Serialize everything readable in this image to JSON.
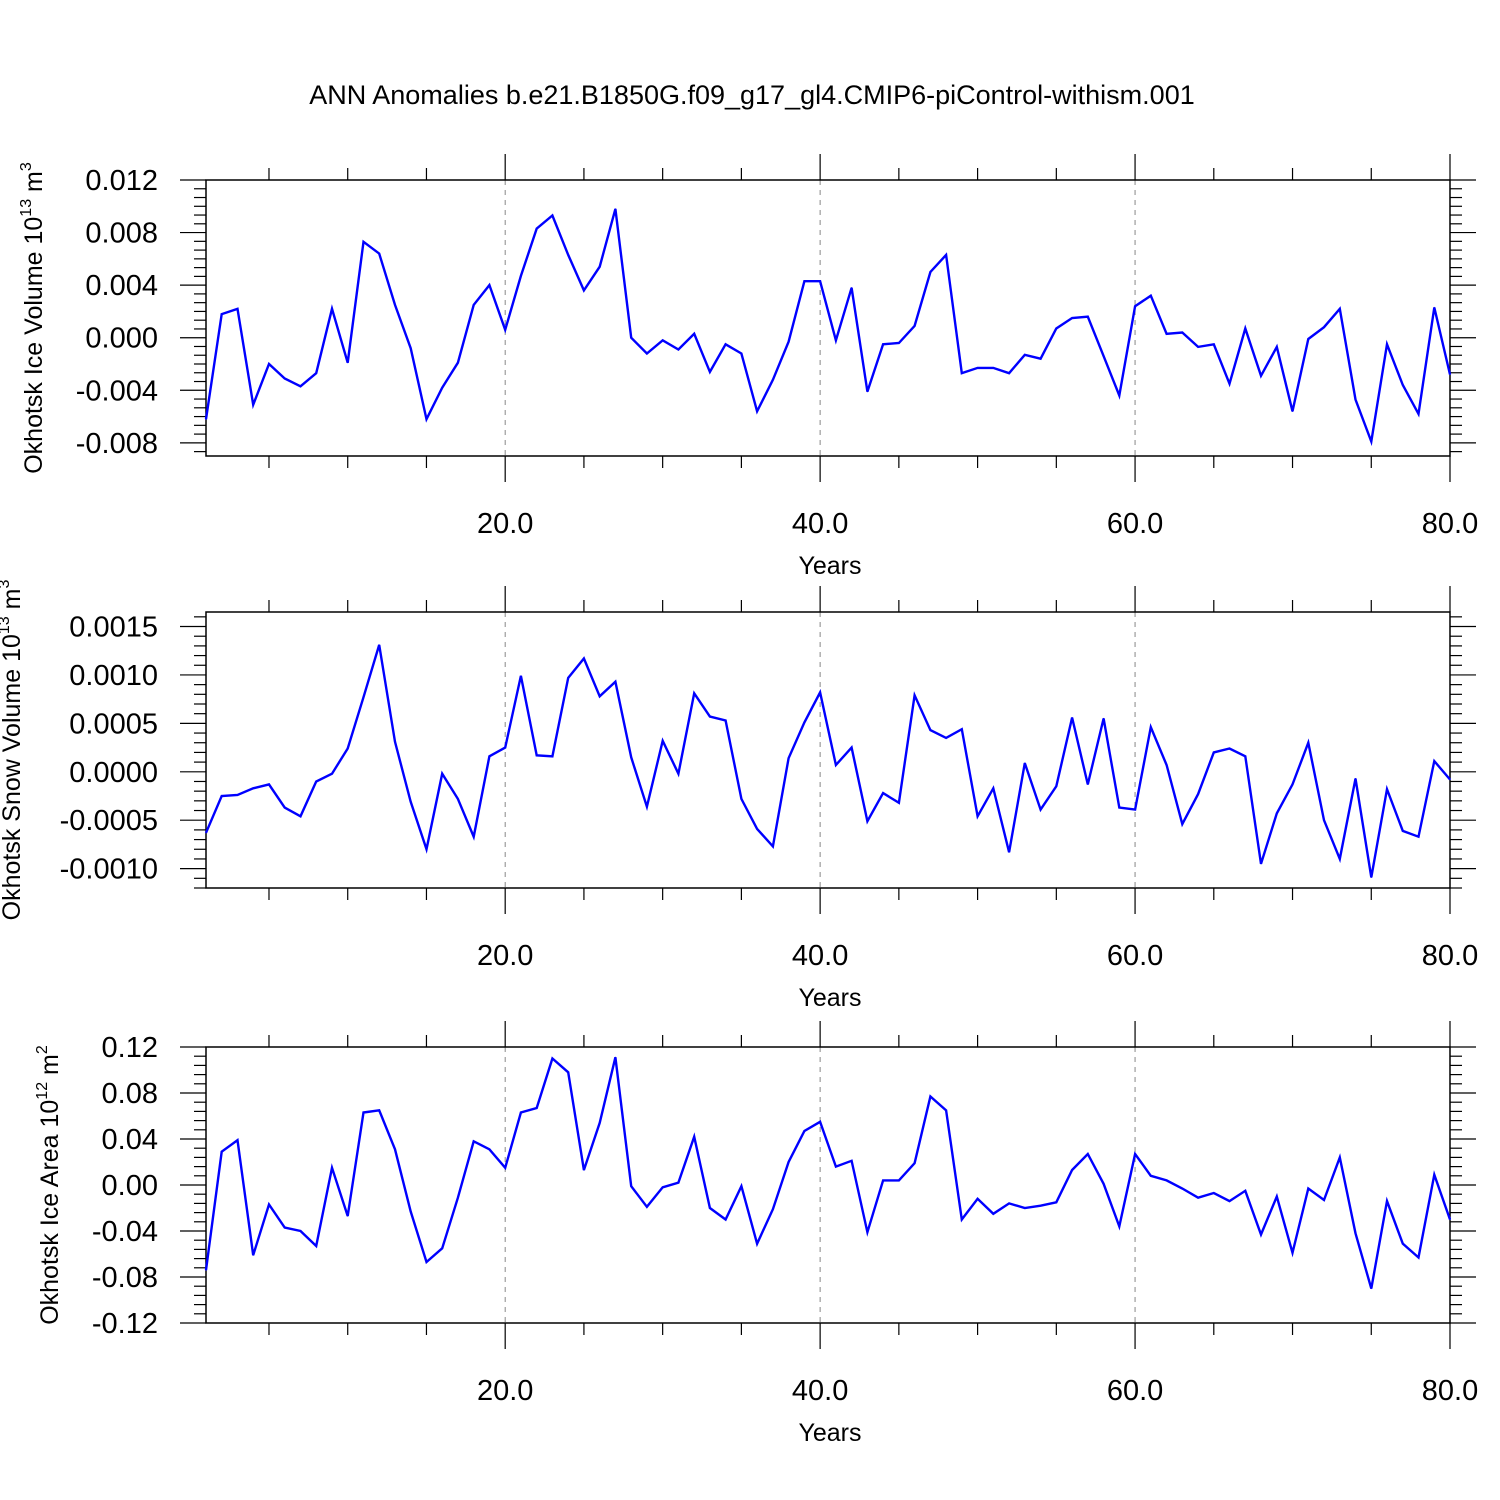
{
  "title": "ANN Anomalies b.e21.B1850G.f09_g17_gl4.CMIP6-piControl-withism.001",
  "line_color": "#0000ff",
  "chart_data": [
    {
      "type": "line",
      "name": "ice-volume",
      "ylabel": "Okhotsk Ice Volume 10",
      "ylabel_sup": "13",
      "ylabel_unit": " m",
      "ylabel_unit_sup": "3",
      "xlabel": "Years",
      "xlim": [
        1,
        80
      ],
      "ylim": [
        -0.009,
        0.012
      ],
      "yticks": [
        0.012,
        0.008,
        0.004,
        0.0,
        -0.004,
        -0.008
      ],
      "ytick_labels": [
        "0.012",
        "0.008",
        "0.004",
        "0.000",
        "-0.004",
        "-0.008"
      ],
      "xticks": [
        20,
        40,
        60,
        80
      ],
      "xtick_labels": [
        "20.0",
        "40.0",
        "60.0",
        "80.0"
      ],
      "x": [
        1,
        2,
        3,
        4,
        5,
        6,
        7,
        8,
        9,
        10,
        11,
        12,
        13,
        14,
        15,
        16,
        17,
        18,
        19,
        20,
        21,
        22,
        23,
        24,
        25,
        26,
        27,
        28,
        29,
        30,
        31,
        32,
        33,
        34,
        35,
        36,
        37,
        38,
        39,
        40,
        41,
        42,
        43,
        44,
        45,
        46,
        47,
        48,
        49,
        50,
        51,
        52,
        53,
        54,
        55,
        56,
        57,
        58,
        59,
        60,
        61,
        62,
        63,
        64,
        65,
        66,
        67,
        68,
        69,
        70,
        71,
        72,
        73,
        74,
        75,
        76,
        77,
        78,
        79,
        80
      ],
      "y": [
        -0.0062,
        0.0018,
        0.0022,
        -0.0051,
        -0.002,
        -0.0031,
        -0.0037,
        -0.0027,
        0.0022,
        -0.0019,
        0.0073,
        0.0064,
        0.0025,
        -0.0008,
        -0.0062,
        -0.0038,
        -0.0019,
        0.0025,
        0.004,
        0.0006,
        0.0047,
        0.0083,
        0.0093,
        0.0063,
        0.0036,
        0.0054,
        0.0098,
        0.0,
        -0.0012,
        -0.0002,
        -0.0009,
        0.0003,
        -0.0026,
        -0.0005,
        -0.0012,
        -0.0056,
        -0.0032,
        -0.0003,
        0.0043,
        0.0043,
        -0.0002,
        0.0038,
        -0.0041,
        -0.0005,
        -0.0004,
        0.0009,
        0.005,
        0.0063,
        -0.0027,
        -0.0023,
        -0.0023,
        -0.0027,
        -0.0013,
        -0.0016,
        0.0007,
        0.0015,
        0.0016,
        -0.0014,
        -0.0044,
        0.0024,
        0.0032,
        0.0003,
        0.0004,
        -0.0007,
        -0.0005,
        -0.0035,
        0.0007,
        -0.0029,
        -0.0007,
        -0.0056,
        -0.0001,
        0.0008,
        0.0022,
        -0.0047,
        -0.0079,
        -0.0005,
        -0.0036,
        -0.0058,
        0.0023,
        -0.0028
      ]
    },
    {
      "type": "line",
      "name": "snow-volume",
      "ylabel": "Okhotsk Snow Volume 10",
      "ylabel_sup": "13",
      "ylabel_unit": " m",
      "ylabel_unit_sup": "3",
      "xlabel": "Years",
      "xlim": [
        1,
        80
      ],
      "ylim": [
        -0.0012,
        0.00165
      ],
      "yticks": [
        0.0015,
        0.001,
        0.0005,
        0.0,
        -0.0005,
        -0.001
      ],
      "ytick_labels": [
        "0.0015",
        "0.0010",
        "0.0005",
        "0.0000",
        "-0.0005",
        "-0.0010"
      ],
      "xticks": [
        20,
        40,
        60,
        80
      ],
      "xtick_labels": [
        "20.0",
        "40.0",
        "60.0",
        "80.0"
      ],
      "x": [
        1,
        2,
        3,
        4,
        5,
        6,
        7,
        8,
        9,
        10,
        11,
        12,
        13,
        14,
        15,
        16,
        17,
        18,
        19,
        20,
        21,
        22,
        23,
        24,
        25,
        26,
        27,
        28,
        29,
        30,
        31,
        32,
        33,
        34,
        35,
        36,
        37,
        38,
        39,
        40,
        41,
        42,
        43,
        44,
        45,
        46,
        47,
        48,
        49,
        50,
        51,
        52,
        53,
        54,
        55,
        56,
        57,
        58,
        59,
        60,
        61,
        62,
        63,
        64,
        65,
        66,
        67,
        68,
        69,
        70,
        71,
        72,
        73,
        74,
        75,
        76,
        77,
        78,
        79,
        80
      ],
      "y": [
        -0.00063,
        -0.00025,
        -0.00024,
        -0.00017,
        -0.00013,
        -0.00037,
        -0.00046,
        -0.0001,
        -2e-05,
        0.00024,
        0.00077,
        0.00131,
        0.00031,
        -0.00031,
        -0.0008,
        -2e-05,
        -0.00028,
        -0.00067,
        0.00016,
        0.00025,
        0.00099,
        0.00017,
        0.00016,
        0.00097,
        0.00117,
        0.00078,
        0.00093,
        0.00015,
        -0.00036,
        0.00032,
        -2e-05,
        0.00081,
        0.00057,
        0.00053,
        -0.00028,
        -0.00059,
        -0.00077,
        0.00014,
        0.00051,
        0.00082,
        7e-05,
        0.00025,
        -0.00051,
        -0.00022,
        -0.00032,
        0.00079,
        0.00043,
        0.00035,
        0.00044,
        -0.00046,
        -0.00017,
        -0.00083,
        9e-05,
        -0.00039,
        -0.00015,
        0.00056,
        -0.00013,
        0.00055,
        -0.00037,
        -0.00039,
        0.00046,
        7e-05,
        -0.00054,
        -0.00023,
        0.0002,
        0.00024,
        0.00016,
        -0.00095,
        -0.00043,
        -0.00013,
        0.0003,
        -0.0005,
        -0.0009,
        -7e-05,
        -0.00109,
        -0.00018,
        -0.00061,
        -0.00067,
        0.00011,
        -8e-05
      ]
    },
    {
      "type": "line",
      "name": "ice-area",
      "ylabel": "Okhotsk Ice Area 10",
      "ylabel_sup": "12",
      "ylabel_unit": " m",
      "ylabel_unit_sup": "2",
      "xlabel": "Years",
      "xlim": [
        1,
        80
      ],
      "ylim": [
        -0.12,
        0.12
      ],
      "yticks": [
        0.12,
        0.08,
        0.04,
        0.0,
        -0.04,
        -0.08,
        -0.12
      ],
      "ytick_labels": [
        "0.12",
        "0.08",
        "0.04",
        "0.00",
        "-0.04",
        "-0.08",
        "-0.12"
      ],
      "xticks": [
        20,
        40,
        60,
        80
      ],
      "xtick_labels": [
        "20.0",
        "40.0",
        "60.0",
        "80.0"
      ],
      "x": [
        1,
        2,
        3,
        4,
        5,
        6,
        7,
        8,
        9,
        10,
        11,
        12,
        13,
        14,
        15,
        16,
        17,
        18,
        19,
        20,
        21,
        22,
        23,
        24,
        25,
        26,
        27,
        28,
        29,
        30,
        31,
        32,
        33,
        34,
        35,
        36,
        37,
        38,
        39,
        40,
        41,
        42,
        43,
        44,
        45,
        46,
        47,
        48,
        49,
        50,
        51,
        52,
        53,
        54,
        55,
        56,
        57,
        58,
        59,
        60,
        61,
        62,
        63,
        64,
        65,
        66,
        67,
        68,
        69,
        70,
        71,
        72,
        73,
        74,
        75,
        76,
        77,
        78,
        79,
        80
      ],
      "y": [
        -0.074,
        0.029,
        0.039,
        -0.061,
        -0.017,
        -0.037,
        -0.04,
        -0.053,
        0.015,
        -0.027,
        0.063,
        0.065,
        0.031,
        -0.023,
        -0.067,
        -0.055,
        -0.011,
        0.038,
        0.031,
        0.015,
        0.063,
        0.067,
        0.11,
        0.098,
        0.013,
        0.054,
        0.111,
        -0.001,
        -0.019,
        -0.002,
        0.002,
        0.042,
        -0.02,
        -0.03,
        -0.001,
        -0.051,
        -0.021,
        0.02,
        0.047,
        0.055,
        0.016,
        0.021,
        -0.041,
        0.004,
        0.004,
        0.019,
        0.077,
        0.065,
        -0.03,
        -0.012,
        -0.025,
        -0.016,
        -0.02,
        -0.018,
        -0.015,
        0.013,
        0.027,
        0.001,
        -0.036,
        0.027,
        0.008,
        0.004,
        -0.003,
        -0.011,
        -0.007,
        -0.014,
        -0.005,
        -0.043,
        -0.01,
        -0.059,
        -0.003,
        -0.013,
        0.024,
        -0.042,
        -0.09,
        -0.014,
        -0.051,
        -0.063,
        0.009,
        -0.03
      ]
    }
  ]
}
